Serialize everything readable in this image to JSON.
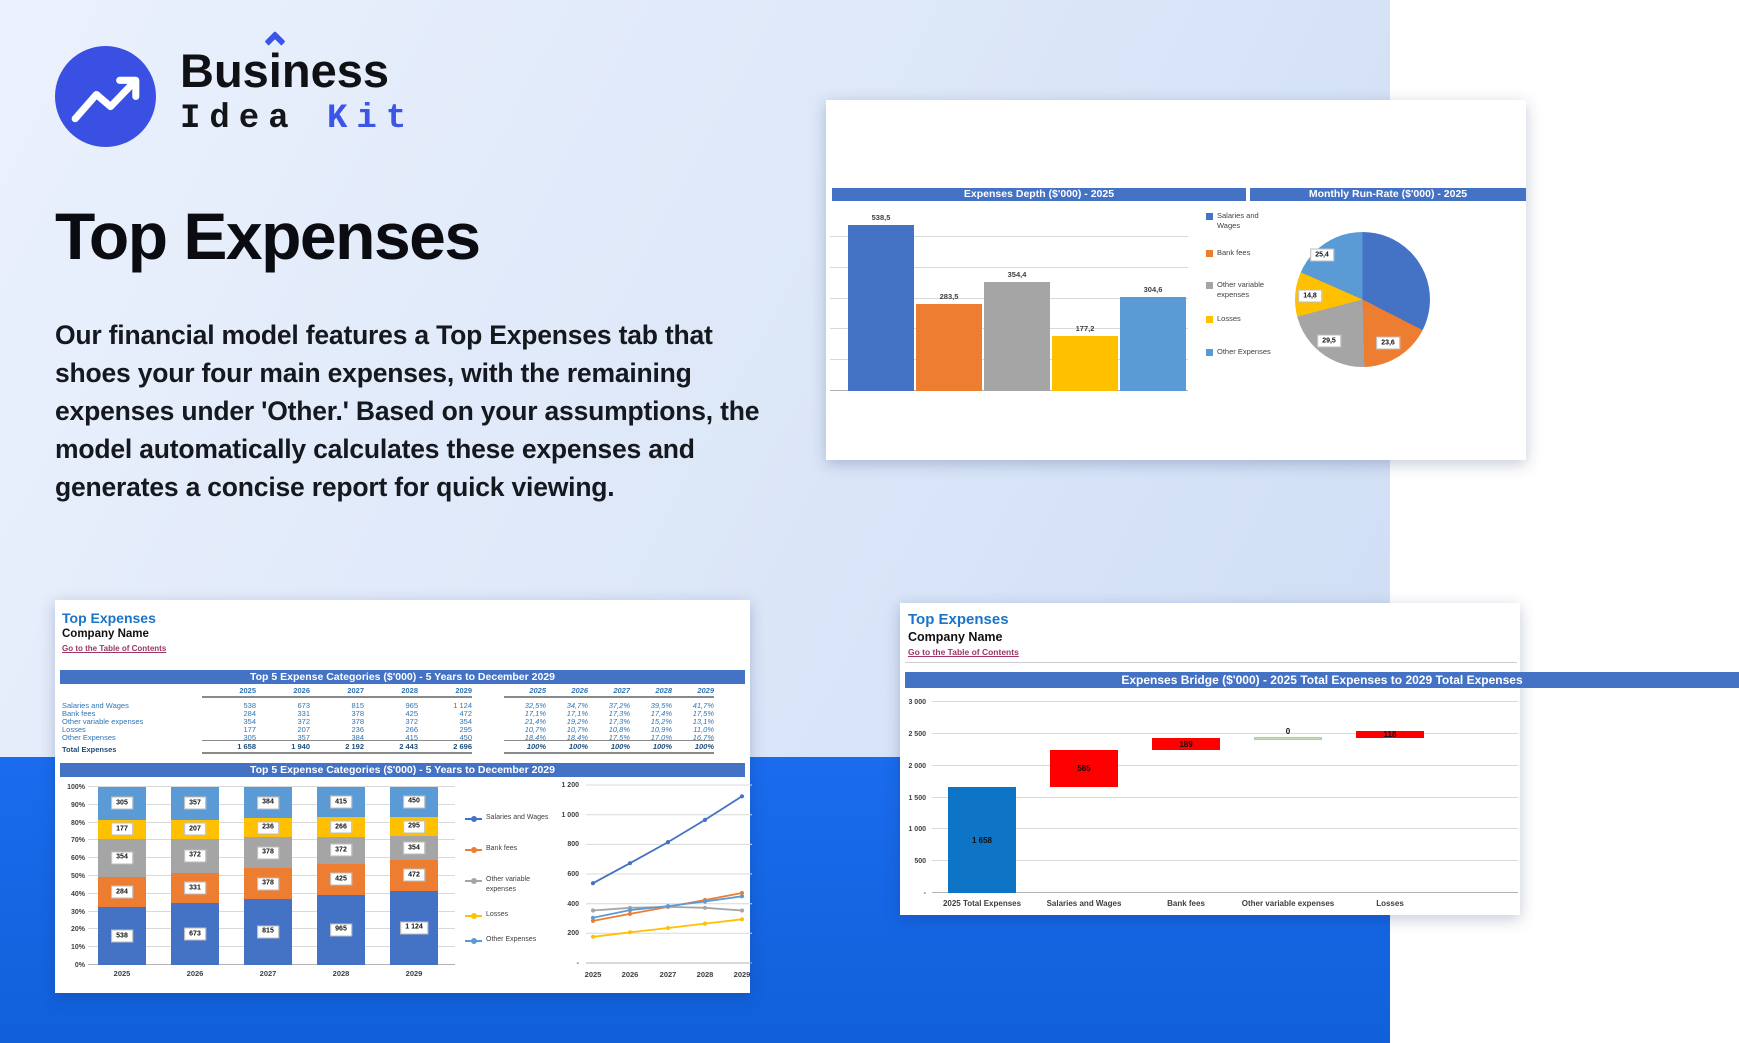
{
  "brand": {
    "part1": "Bus",
    "part2": "i",
    "part3": "ness",
    "line2_a": "Idea",
    "line2_b": "Kit"
  },
  "hero": {
    "title": "Top Expenses",
    "description": "Our financial model features a Top Expenses tab that shoes your four main expenses, with the remaining expenses under 'Other.' Based on your assumptions, the model automatically calculates these expenses and generates a concise report for quick viewing."
  },
  "colors": {
    "excel_blue": "#4472C4",
    "orange": "#ED7D31",
    "gray": "#A5A5A5",
    "yellow": "#FFC000",
    "light_blue": "#5B9BD5",
    "red": "#FF0000",
    "green": "#C6E0B4",
    "bridge_blue": "#0E74C6",
    "header_bg": "#4472C4",
    "panel_title": "#1B74C6",
    "link": "#9E3566",
    "accent": "#3B55E8"
  },
  "series_names": [
    "Salaries and Wages",
    "Bank fees",
    "Other variable expenses",
    "Losses",
    "Other Expenses"
  ],
  "years": [
    "2025",
    "2026",
    "2027",
    "2028",
    "2029"
  ],
  "top_right": {
    "bar_header": "Expenses Depth ($'000) - 2025",
    "pie_header": "Monthly Run-Rate ($'000) - 2025"
  },
  "left_panel": {
    "title": "Top Expenses",
    "company": "Company Name",
    "link": "Go to the Table of Contents",
    "table_header": "Top 5 Expense Categories ($'000) - 5 Years to December 2029",
    "chart_header": "Top 5 Expense Categories ($'000) - 5 Years to December 2029",
    "rows": [
      {
        "label": "Salaries and Wages",
        "values": [
          "538",
          "673",
          "815",
          "965",
          "1 124"
        ],
        "pcts": [
          "32,5%",
          "34,7%",
          "37,2%",
          "39,5%",
          "41,7%"
        ]
      },
      {
        "label": "Bank fees",
        "values": [
          "284",
          "331",
          "378",
          "425",
          "472"
        ],
        "pcts": [
          "17,1%",
          "17,1%",
          "17,3%",
          "17,4%",
          "17,5%"
        ]
      },
      {
        "label": "Other variable expenses",
        "values": [
          "354",
          "372",
          "378",
          "372",
          "354"
        ],
        "pcts": [
          "21,4%",
          "19,2%",
          "17,3%",
          "15,2%",
          "13,1%"
        ]
      },
      {
        "label": "Losses",
        "values": [
          "177",
          "207",
          "236",
          "266",
          "295"
        ],
        "pcts": [
          "10,7%",
          "10,7%",
          "10,8%",
          "10,9%",
          "11,0%"
        ]
      },
      {
        "label": "Other Expenses",
        "values": [
          "305",
          "357",
          "384",
          "415",
          "450"
        ],
        "pcts": [
          "18,4%",
          "18,4%",
          "17,5%",
          "17,0%",
          "16,7%"
        ]
      }
    ],
    "total": {
      "label": "Total Expenses",
      "values": [
        "1 658",
        "1 940",
        "2 192",
        "2 443",
        "2 696"
      ],
      "pcts": [
        "100%",
        "100%",
        "100%",
        "100%",
        "100%"
      ]
    }
  },
  "right_panel": {
    "title": "Top Expenses",
    "company": "Company Name",
    "link": "Go to the Table of Contents",
    "header": "Expenses Bridge ($'000) - 2025 Total Expenses to 2029 Total Expenses"
  },
  "chart_data": [
    {
      "type": "bar",
      "title": "Expenses Depth ($'000) - 2025",
      "categories": [
        "Salaries and Wages",
        "Bank fees",
        "Other variable expenses",
        "Losses",
        "Other Expenses"
      ],
      "values": [
        538.5,
        283.5,
        354.4,
        177.2,
        304.6
      ],
      "value_labels": [
        "538,5",
        "283,5",
        "354,4",
        "177,2",
        "304,6"
      ],
      "ylim": [
        0,
        500
      ],
      "grid_step": 100,
      "legend_position": "right"
    },
    {
      "type": "pie",
      "title": "Monthly Run-Rate ($'000) - 2025",
      "categories": [
        "Salaries and Wages",
        "Bank fees",
        "Other variable expenses",
        "Losses",
        "Other Expenses"
      ],
      "values": [
        44.9,
        23.6,
        29.5,
        14.8,
        25.4
      ],
      "visible_labels": [
        "25,4",
        "14,8",
        "29,5",
        "23,6"
      ]
    },
    {
      "type": "bar",
      "subtype": "stacked-100",
      "title": "Top 5 Expense Categories ($'000) - 5 Years to December 2029",
      "categories": [
        "2025",
        "2026",
        "2027",
        "2028",
        "2029"
      ],
      "series": [
        {
          "name": "Salaries and Wages",
          "values": [
            538,
            673,
            815,
            965,
            1124
          ],
          "share": [
            0.325,
            0.347,
            0.372,
            0.395,
            0.417
          ]
        },
        {
          "name": "Bank fees",
          "values": [
            284,
            331,
            378,
            425,
            472
          ],
          "share": [
            0.171,
            0.171,
            0.173,
            0.174,
            0.175
          ]
        },
        {
          "name": "Other variable expenses",
          "values": [
            354,
            372,
            378,
            372,
            354
          ],
          "share": [
            0.214,
            0.192,
            0.173,
            0.152,
            0.131
          ]
        },
        {
          "name": "Losses",
          "values": [
            177,
            207,
            236,
            266,
            295
          ],
          "share": [
            0.107,
            0.107,
            0.108,
            0.109,
            0.11
          ]
        },
        {
          "name": "Other Expenses",
          "values": [
            305,
            357,
            384,
            415,
            450
          ],
          "share": [
            0.184,
            0.184,
            0.175,
            0.17,
            0.167
          ]
        }
      ],
      "yticks": [
        "0%",
        "10%",
        "20%",
        "30%",
        "40%",
        "50%",
        "60%",
        "70%",
        "80%",
        "90%",
        "100%"
      ]
    },
    {
      "type": "line",
      "title": "Top 5 Expense Categories ($'000) - 5 Years to December 2029",
      "x": [
        "2025",
        "2026",
        "2027",
        "2028",
        "2029"
      ],
      "series": [
        {
          "name": "Salaries and Wages",
          "values": [
            538,
            673,
            815,
            965,
            1124
          ]
        },
        {
          "name": "Bank fees",
          "values": [
            284,
            331,
            378,
            425,
            472
          ]
        },
        {
          "name": "Other variable expenses",
          "values": [
            354,
            372,
            378,
            372,
            354
          ]
        },
        {
          "name": "Losses",
          "values": [
            177,
            207,
            236,
            266,
            295
          ]
        },
        {
          "name": "Other Expenses",
          "values": [
            305,
            357,
            384,
            415,
            450
          ]
        }
      ],
      "yticks": [
        "-",
        "200",
        "400",
        "600",
        "800",
        "1 000",
        "1 200"
      ],
      "ylim": [
        0,
        1200
      ]
    },
    {
      "type": "waterfall",
      "title": "Expenses Bridge ($'000) - 2025 Total Expenses to 2029 Total Expenses",
      "steps": [
        {
          "label": "2025 Total Expenses",
          "base": 0,
          "top": 1658,
          "value_label": "1 658",
          "color": "blue"
        },
        {
          "label": "Salaries and Wages",
          "base": 1658,
          "top": 2243,
          "value_label": "585",
          "color": "red"
        },
        {
          "label": "Bank fees",
          "base": 2243,
          "top": 2432,
          "value_label": "189",
          "color": "red"
        },
        {
          "label": "Other variable expenses",
          "base": 2432,
          "top": 2432,
          "value_label": "0",
          "color": "green"
        },
        {
          "label": "Losses",
          "base": 2432,
          "top": 2550,
          "value_label": "118",
          "color": "red"
        }
      ],
      "yticks": [
        "-",
        "500",
        "1 000",
        "1 500",
        "2 000",
        "2 500",
        "3 000"
      ],
      "ylim": [
        0,
        3000
      ]
    }
  ]
}
